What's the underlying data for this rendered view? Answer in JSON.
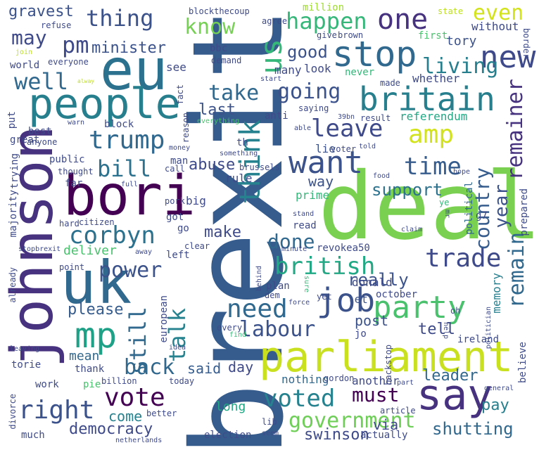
{
  "colors": {
    "c1": "#440154",
    "c2": "#46327e",
    "c3": "#365c8d",
    "c4": "#277f8e",
    "c5": "#1fa187",
    "c6": "#4ac16d",
    "c7": "#a0da39",
    "c8": "#c8e020",
    "c9": "#d2e21b",
    "c10": "#bddf26"
  },
  "words": {
    "brexit": "brexit",
    "deal": "deal",
    "johnson": "johnson",
    "parliament": "parliament",
    "eu": "eu",
    "people": "people",
    "bori": "bori",
    "uk": "uk",
    "say": "say",
    "britain": "britain",
    "stop": "stop",
    "want": "want",
    "mp": "mp",
    "party": "party",
    "job": "job",
    "one": "one",
    "new": "new",
    "us": "us",
    "think": "think",
    "trump": "trump",
    "amp": "amp",
    "leave": "leave",
    "time": "time",
    "corbyn": "corbyn",
    "vote": "vote",
    "voted": "voted",
    "right": "right",
    "labour": "labour",
    "need": "need",
    "british": "british",
    "trade": "trade",
    "country": "country",
    "remain": "remain",
    "remainer": "remainer",
    "government": "government",
    "talk": "talk",
    "still": "still",
    "back": "back",
    "power": "power",
    "bill": "bill",
    "take": "take",
    "going": "going",
    "thing": "thing",
    "happen": "happen",
    "even": "even",
    "know": "know",
    "may": "may",
    "pm": "pm",
    "minister": "minister",
    "well": "well",
    "good": "good",
    "living": "living",
    "year": "year",
    "done": "done",
    "democracy": "democracy",
    "shutting": "shutting",
    "must": "must",
    "really": "really",
    "support": "support",
    "make": "make",
    "please": "please",
    "last": "last",
    "tell": "tell",
    "gravest": "gravest",
    "pay": "pay",
    "leader": "leader",
    "said": "said",
    "day": "day",
    "come": "come",
    "swinson": "swinson",
    "via": "via",
    "abuse": "abuse",
    "way": "way",
    "post": "post",
    "memory": "memory",
    "european": "european",
    "nothing": "nothing",
    "another": "another",
    "deliver": "deliver",
    "mean": "mean",
    "long": "long",
    "donald": "donald",
    "let": "let",
    "referendum": "referendum",
    "rule": "rule",
    "big": "big",
    "lie": "lie",
    "voter": "voter",
    "prime": "prime",
    "political": "political",
    "see": "see",
    "many": "many",
    "look": "look",
    "made": "made",
    "whether": "whether",
    "tory": "tory",
    "without": "without",
    "first": "first",
    "brown": "brown",
    "give": "give",
    "border": "border",
    "state": "state",
    "million": "million",
    "agree": "agree",
    "blockthecoup": "blockthecoup",
    "refuse": "refuse",
    "bbc": "bbc",
    "demand": "demand",
    "world": "world",
    "everyone": "everyone",
    "join": "join",
    "alway": "alway",
    "start": "start",
    "never": "never",
    "fact": "fact",
    "saying": "saying",
    "anti": "anti",
    "result": "result",
    "39bn": "39bn",
    "best": "best",
    "warn": "warn",
    "block": "block",
    "great": "great",
    "anyone": "anyone",
    "reason": "reason",
    "everything": "everything",
    "th": "th",
    "money": "money",
    "something": "something",
    "able": "able",
    "told": "told",
    "put": "put",
    "public": "public",
    "trying": "trying",
    "thought": "thought",
    "man": "man",
    "brussels": "brussels",
    "call": "call",
    "food": "food",
    "hope": "hope",
    "far": "far",
    "full": "full",
    "majority": "majority",
    "pork": "pork",
    "got": "got",
    "ye": "ye",
    "mr": "mr",
    "g7": "g7",
    "hard": "hard",
    "citizen": "citizen",
    "go": "go",
    "stand": "stand",
    "claim": "claim",
    "read": "read",
    "prepared": "prepared",
    "stopbrexit": "stopbrexit",
    "already": "already",
    "away": "away",
    "clear": "clear",
    "revokea50": "revokea50",
    "minute": "minute",
    "point": "point",
    "left": "left",
    "behind": "behind",
    "sure": "sure",
    "plan": "plan",
    "yet": "yet",
    "dem": "dem",
    "october": "october",
    "oh": "oh",
    "force": "force",
    "help": "help",
    "every": "every",
    "find": "find",
    "jo": "jo",
    "ireland": "ireland",
    "idea": "idea",
    "leaving": "leaving",
    "torie": "torie",
    "backstop": "backstop",
    "believe": "believe",
    "thank": "thank",
    "work": "work",
    "pie": "pie",
    "billion": "billion",
    "today": "today",
    "gordon": "gordon",
    "part": "part",
    "general": "general",
    "divorce": "divorce",
    "better": "better",
    "article": "article",
    "lib": "lib",
    "much": "much",
    "election": "election",
    "seem": "seem",
    "actually": "actually",
    "netherlands": "netherlands",
    "politician": "politician"
  }
}
